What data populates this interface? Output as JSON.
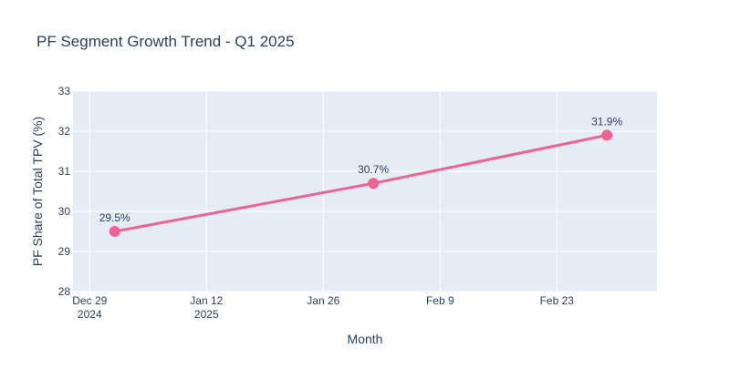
{
  "chart_data": {
    "type": "line",
    "title": "PF Segment Growth Trend - Q1 2025",
    "xlabel": "Month",
    "ylabel": "PF Share of Total TPV (%)",
    "x_type": "date",
    "x_range": [
      "2024-12-27",
      "2025-03-07"
    ],
    "x_ticks": [
      {
        "date": "2024-12-29",
        "label": "Dec 29",
        "sublabel": "2024"
      },
      {
        "date": "2025-01-12",
        "label": "Jan 12",
        "sublabel": "2025"
      },
      {
        "date": "2025-01-26",
        "label": "Jan 26",
        "sublabel": ""
      },
      {
        "date": "2025-02-09",
        "label": "Feb 9",
        "sublabel": ""
      },
      {
        "date": "2025-02-23",
        "label": "Feb 23",
        "sublabel": ""
      }
    ],
    "ylim": [
      28,
      33
    ],
    "y_ticks": [
      28,
      29,
      30,
      31,
      32,
      33
    ],
    "grid": true,
    "series": [
      {
        "x": [
          "2025-01-01",
          "2025-02-01",
          "2025-03-01"
        ],
        "y": [
          29.5,
          30.7,
          31.9
        ],
        "labels": [
          "29.5%",
          "30.7%",
          "31.9%"
        ],
        "color": "#f06292"
      }
    ],
    "colors": {
      "plot_bg": "#e5ecf6",
      "grid": "#ffffff",
      "text": "#2a3f5f",
      "line": "#f06292"
    }
  }
}
